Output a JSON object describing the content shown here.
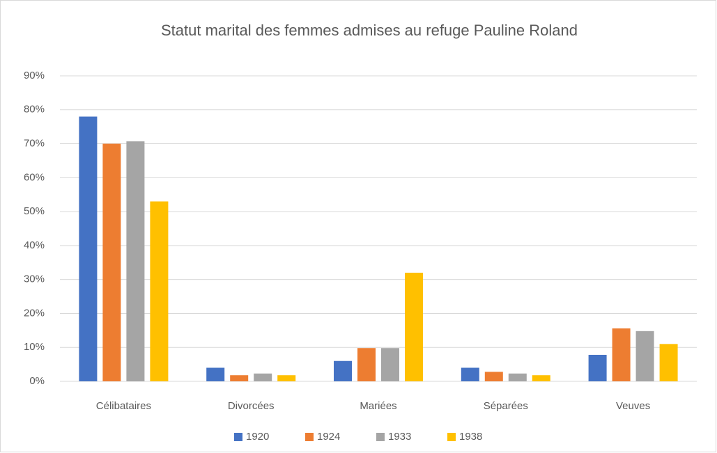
{
  "chart_data": {
    "type": "bar",
    "title": "Statut marital des femmes admises au refuge Pauline Roland",
    "categories": [
      "Célibataires",
      "Divorcées",
      "Mariées",
      "Séparées",
      "Veuves"
    ],
    "series": [
      {
        "name": "1920",
        "color": "#4472c4",
        "values": [
          78,
          4,
          6,
          4,
          7.8
        ]
      },
      {
        "name": "1924",
        "color": "#ed7d31",
        "values": [
          70,
          1.8,
          9.8,
          2.8,
          15.6
        ]
      },
      {
        "name": "1933",
        "color": "#a5a5a5",
        "values": [
          70.7,
          2.3,
          9.8,
          2.3,
          14.8
        ]
      },
      {
        "name": "1938",
        "color": "#ffc000",
        "values": [
          53,
          1.8,
          32,
          1.8,
          11
        ]
      }
    ],
    "ylim": [
      0,
      90
    ],
    "yticks": [
      {
        "value": 0,
        "label": "0%"
      },
      {
        "value": 10,
        "label": "10%"
      },
      {
        "value": 20,
        "label": "20%"
      },
      {
        "value": 30,
        "label": "30%"
      },
      {
        "value": 40,
        "label": "40%"
      },
      {
        "value": 50,
        "label": "50%"
      },
      {
        "value": 60,
        "label": "60%"
      },
      {
        "value": 70,
        "label": "70%"
      },
      {
        "value": 80,
        "label": "80%"
      },
      {
        "value": 90,
        "label": "90%"
      }
    ],
    "grid": true,
    "legend": "bottom"
  }
}
